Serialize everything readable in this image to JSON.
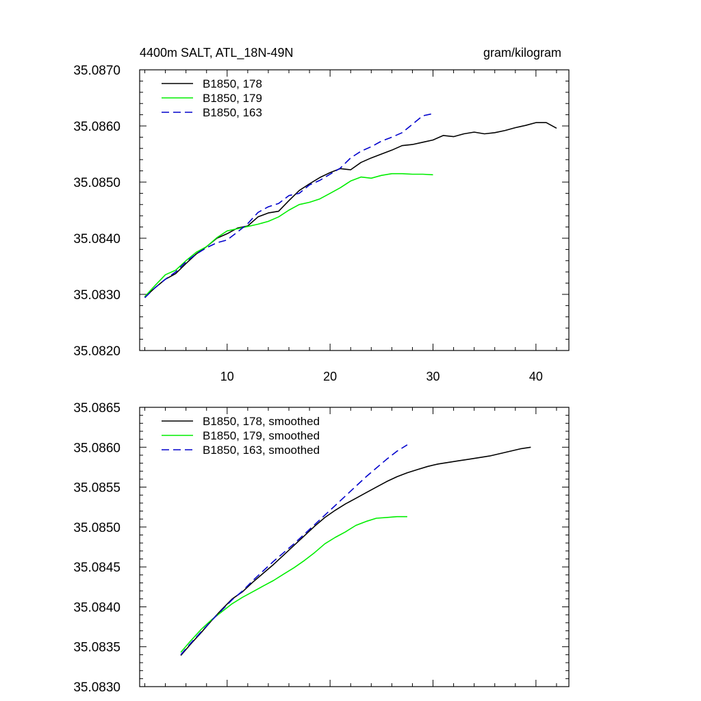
{
  "title_left": "4400m SALT, ATL_18N-49N",
  "title_right": "gram/kilogram",
  "colors": {
    "s178": "#000000",
    "s179": "#00ee00",
    "s163": "#0000cc"
  },
  "chart_data": [
    {
      "type": "line",
      "xlim": [
        1.5,
        43.2
      ],
      "ylim": [
        35.082,
        35.087
      ],
      "xticks": [
        10,
        20,
        30,
        40
      ],
      "xtick_labels": [
        "10",
        "20",
        "30",
        "40"
      ],
      "yticks": [
        35.082,
        35.083,
        35.084,
        35.085,
        35.086,
        35.087
      ],
      "ytick_labels": [
        "35.0820",
        "35.0830",
        "35.0840",
        "35.0850",
        "35.0860",
        "35.0870"
      ],
      "series": [
        {
          "name": "B1850, 178",
          "color": "#000000",
          "dash": "solid",
          "x": [
            2,
            3,
            4,
            5,
            6,
            7,
            8,
            9,
            10,
            11,
            12,
            13,
            14,
            15,
            16,
            17,
            18,
            19,
            20,
            21,
            22,
            23,
            24,
            25,
            26,
            27,
            28,
            29,
            30,
            31,
            32,
            33,
            34,
            35,
            36,
            37,
            38,
            39,
            40,
            41,
            42
          ],
          "y": [
            35.08295,
            35.08312,
            35.08327,
            35.08337,
            35.08355,
            35.08372,
            35.08385,
            35.084,
            35.08408,
            35.08418,
            35.08422,
            35.08438,
            35.08445,
            35.08448,
            35.08467,
            35.08485,
            35.08497,
            35.08508,
            35.08517,
            35.08524,
            35.08522,
            35.08535,
            35.08543,
            35.0855,
            35.08557,
            35.08565,
            35.08567,
            35.08571,
            35.08575,
            35.08583,
            35.08581,
            35.08586,
            35.08589,
            35.08586,
            35.08588,
            35.08592,
            35.08597,
            35.08601,
            35.08606,
            35.08606,
            35.08596
          ]
        },
        {
          "name": "B1850, 179",
          "color": "#00ee00",
          "dash": "solid",
          "x": [
            2,
            3,
            4,
            5,
            6,
            7,
            8,
            9,
            10,
            11,
            12,
            13,
            14,
            15,
            16,
            17,
            18,
            19,
            20,
            21,
            22,
            23,
            24,
            25,
            26,
            27,
            28,
            29,
            30
          ],
          "y": [
            35.08296,
            35.08316,
            35.08335,
            35.08343,
            35.0836,
            35.08375,
            35.08385,
            35.08401,
            35.08413,
            35.08417,
            35.08421,
            35.08425,
            35.0843,
            35.08438,
            35.0845,
            35.0846,
            35.08464,
            35.0847,
            35.0848,
            35.0849,
            35.08502,
            35.08509,
            35.08507,
            35.08512,
            35.08515,
            35.08515,
            35.08514,
            35.08514,
            35.08513
          ]
        },
        {
          "name": "B1850, 163",
          "color": "#0000cc",
          "dash": "dashed",
          "x": [
            2,
            3,
            4,
            5,
            6,
            7,
            8,
            9,
            10,
            11,
            12,
            13,
            14,
            15,
            16,
            17,
            18,
            19,
            20,
            21,
            22,
            23,
            24,
            25,
            26,
            27,
            28,
            29,
            30
          ],
          "y": [
            35.08294,
            35.08312,
            35.08327,
            35.0834,
            35.08358,
            35.08372,
            35.08383,
            35.08392,
            35.08397,
            35.08411,
            35.08426,
            35.08446,
            35.08456,
            35.08462,
            35.08476,
            35.0848,
            35.08495,
            35.08503,
            35.08514,
            35.08525,
            35.08543,
            35.08555,
            35.08563,
            35.08573,
            35.0858,
            35.08588,
            35.08603,
            35.08618,
            35.08622
          ]
        }
      ],
      "legend": [
        "B1850, 178",
        "B1850, 179",
        "B1850, 163"
      ],
      "legend_location": "top-left"
    },
    {
      "type": "line",
      "xlim": [
        1.5,
        43.2
      ],
      "ylim": [
        35.083,
        35.0865
      ],
      "xticks": [
        10,
        20,
        30,
        40
      ],
      "yticks": [
        35.083,
        35.0835,
        35.084,
        35.0845,
        35.085,
        35.0855,
        35.086,
        35.0865
      ],
      "ytick_labels": [
        "35.0830",
        "35.0835",
        "35.0840",
        "35.0845",
        "35.0850",
        "35.0855",
        "35.0860",
        "35.0865"
      ],
      "series": [
        {
          "name": "B1850, 178, smoothed",
          "color": "#000000",
          "dash": "solid",
          "x": [
            5.5,
            6.5,
            7.5,
            8.5,
            9.5,
            10.5,
            11.5,
            12.5,
            13.5,
            14.5,
            15.5,
            16.5,
            17.5,
            18.5,
            19.5,
            20.5,
            21.5,
            22.5,
            23.5,
            24.5,
            25.5,
            26.5,
            27.5,
            28.5,
            29.5,
            30.5,
            31.5,
            32.5,
            33.5,
            34.5,
            35.5,
            36.5,
            37.5,
            38.5,
            39.5
          ],
          "y": [
            35.08339,
            35.08354,
            35.08368,
            35.08383,
            35.08397,
            35.0841,
            35.08419,
            35.08431,
            35.08442,
            35.08453,
            35.08465,
            35.08477,
            35.08489,
            35.08501,
            35.08512,
            35.08521,
            35.08529,
            35.08536,
            35.08543,
            35.0855,
            35.08557,
            35.08563,
            35.08568,
            35.08572,
            35.08576,
            35.08579,
            35.08581,
            35.08583,
            35.08585,
            35.08587,
            35.08589,
            35.08592,
            35.08595,
            35.08598,
            35.086
          ]
        },
        {
          "name": "B1850, 179, smoothed",
          "color": "#00ee00",
          "dash": "solid",
          "x": [
            5.5,
            6.5,
            7.5,
            8.5,
            9.5,
            10.5,
            11.5,
            12.5,
            13.5,
            14.5,
            15.5,
            16.5,
            17.5,
            18.5,
            19.5,
            20.5,
            21.5,
            22.5,
            23.5,
            24.5,
            25.5,
            26.5,
            27.5
          ],
          "y": [
            35.08343,
            35.08358,
            35.08372,
            35.08384,
            35.08394,
            35.08404,
            35.08412,
            35.08419,
            35.08426,
            35.08433,
            35.08441,
            35.08449,
            35.08458,
            35.08468,
            35.08479,
            35.08487,
            35.08494,
            35.08502,
            35.08507,
            35.08511,
            35.08512,
            35.08513,
            35.08513
          ]
        },
        {
          "name": "B1850, 163, smoothed",
          "color": "#0000cc",
          "dash": "dashed",
          "x": [
            5.5,
            6.5,
            7.5,
            8.5,
            9.5,
            10.5,
            11.5,
            12.5,
            13.5,
            14.5,
            15.5,
            16.5,
            17.5,
            18.5,
            19.5,
            20.5,
            21.5,
            22.5,
            23.5,
            24.5,
            25.5,
            26.5,
            27.5
          ],
          "y": [
            35.0834,
            35.08355,
            35.08369,
            35.08383,
            35.08396,
            35.08409,
            35.0842,
            35.08433,
            35.08445,
            35.08457,
            35.08468,
            35.08479,
            35.08491,
            35.08503,
            35.08515,
            35.08527,
            35.08539,
            35.08551,
            35.08563,
            35.08574,
            35.08585,
            35.08595,
            35.08603
          ]
        }
      ],
      "legend": [
        "B1850, 178, smoothed",
        "B1850, 179, smoothed",
        "B1850, 163, smoothed"
      ],
      "legend_location": "top-left"
    }
  ]
}
